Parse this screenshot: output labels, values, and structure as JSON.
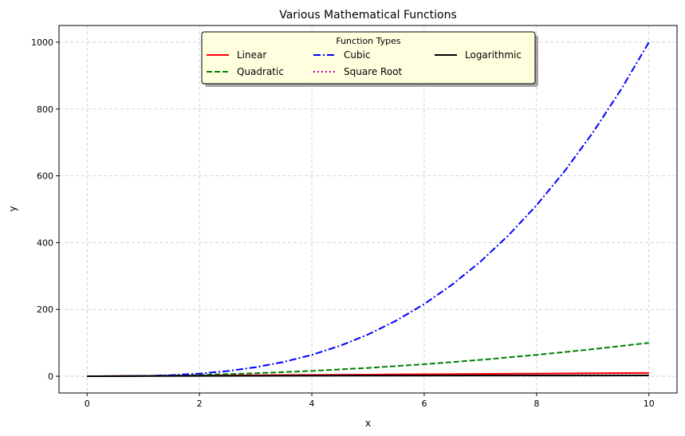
{
  "chart_data": {
    "type": "line",
    "title": "Various Mathematical Functions",
    "xlabel": "x",
    "ylabel": "y",
    "xlim": [
      -0.5,
      10.5
    ],
    "ylim": [
      -50,
      1050
    ],
    "xticks": [
      0,
      2,
      4,
      6,
      8,
      10
    ],
    "yticks": [
      0,
      200,
      400,
      600,
      800,
      1000
    ],
    "grid": true,
    "legend": {
      "title": "Function Types",
      "placement": "upper center",
      "columns": 3
    },
    "series": [
      {
        "name": "Linear",
        "color": "#ff0000",
        "style": "solid",
        "x": [
          0,
          1,
          2,
          3,
          4,
          5,
          6,
          7,
          8,
          9,
          10
        ],
        "y": [
          0,
          1,
          2,
          3,
          4,
          5,
          6,
          7,
          8,
          9,
          10
        ]
      },
      {
        "name": "Quadratic",
        "color": "#008000",
        "style": "dashed",
        "x": [
          0,
          1,
          2,
          3,
          4,
          5,
          6,
          7,
          8,
          9,
          10
        ],
        "y": [
          0,
          1,
          4,
          9,
          16,
          25,
          36,
          49,
          64,
          81,
          100
        ]
      },
      {
        "name": "Cubic",
        "color": "#0000ff",
        "style": "dashdot",
        "x": [
          0,
          0.5,
          1,
          1.5,
          2,
          2.5,
          3,
          3.5,
          4,
          4.5,
          5,
          5.5,
          6,
          6.5,
          7,
          7.5,
          8,
          8.5,
          9,
          9.5,
          10
        ],
        "y": [
          0,
          0.125,
          1,
          3.375,
          8,
          15.625,
          27,
          42.875,
          64,
          91.125,
          125,
          166.375,
          216,
          274.625,
          343,
          421.875,
          512,
          614.125,
          729,
          857.375,
          1000
        ]
      },
      {
        "name": "Square Root",
        "color": "#bf00bf",
        "style": "dotted",
        "x": [
          0,
          0.5,
          1,
          2,
          3,
          4,
          5,
          6,
          7,
          8,
          9,
          10
        ],
        "y": [
          0,
          0.71,
          1,
          1.41,
          1.73,
          2,
          2.24,
          2.45,
          2.65,
          2.83,
          3,
          3.16
        ]
      },
      {
        "name": "Logarithmic",
        "color": "#000000",
        "style": "solid",
        "x": [
          0,
          1,
          2,
          3,
          4,
          5,
          6,
          7,
          8,
          9,
          10
        ],
        "y": [
          0,
          0.69,
          1.1,
          1.39,
          1.61,
          1.79,
          1.95,
          2.08,
          2.2,
          2.3,
          2.4
        ]
      }
    ]
  }
}
